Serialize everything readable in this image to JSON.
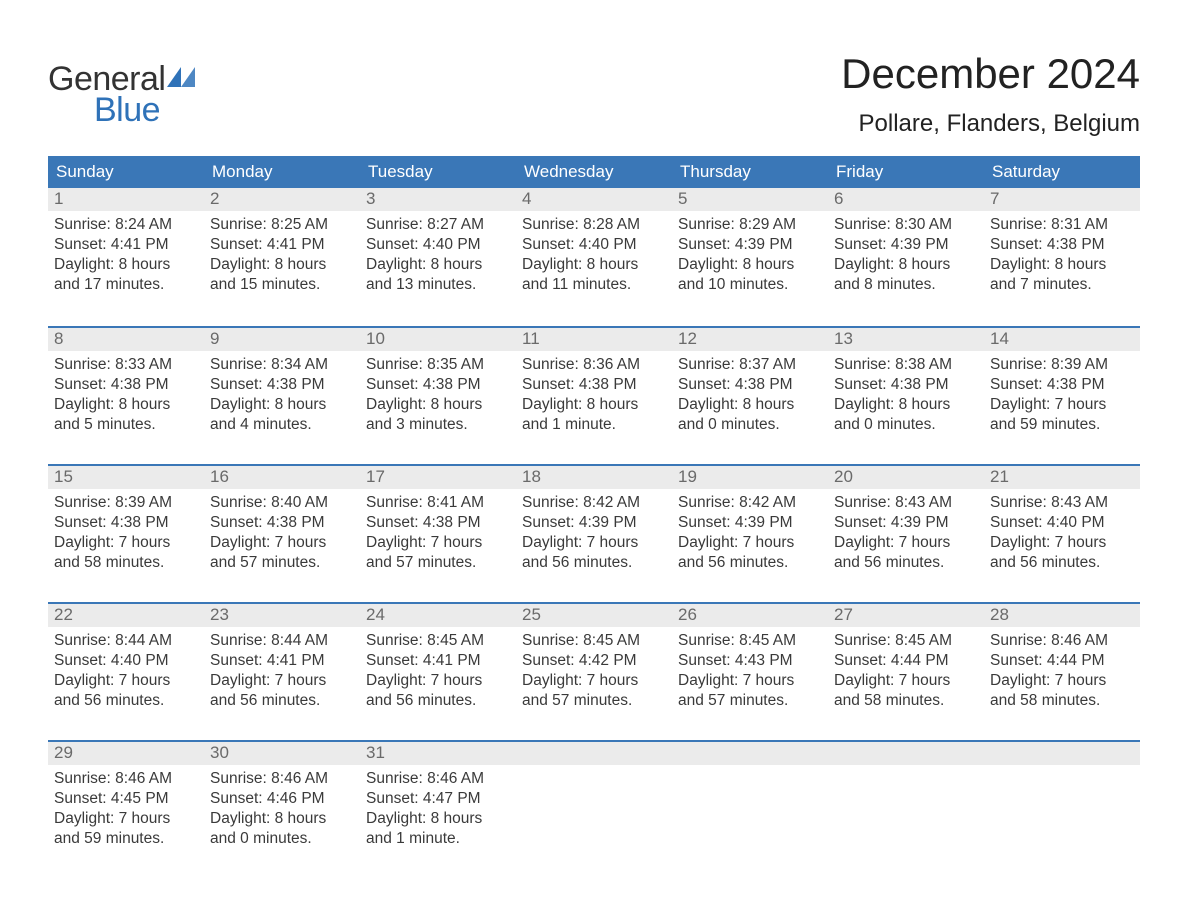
{
  "logo": {
    "text_top": "General",
    "text_bottom": "Blue",
    "accent_color": "#2f72b8"
  },
  "title": "December 2024",
  "location": "Pollare, Flanders, Belgium",
  "colors": {
    "header_bg": "#3a77b7",
    "header_text": "#ffffff",
    "day_number_bg": "#ebebeb",
    "day_number_text": "#6a6a6a",
    "body_text": "#3a3a3a",
    "row_border": "#3a77b7",
    "page_bg": "#ffffff"
  },
  "weekdays": [
    "Sunday",
    "Monday",
    "Tuesday",
    "Wednesday",
    "Thursday",
    "Friday",
    "Saturday"
  ],
  "weeks": [
    [
      {
        "day": "1",
        "sunrise": "Sunrise: 8:24 AM",
        "sunset": "Sunset: 4:41 PM",
        "dl1": "Daylight: 8 hours",
        "dl2": "and 17 minutes."
      },
      {
        "day": "2",
        "sunrise": "Sunrise: 8:25 AM",
        "sunset": "Sunset: 4:41 PM",
        "dl1": "Daylight: 8 hours",
        "dl2": "and 15 minutes."
      },
      {
        "day": "3",
        "sunrise": "Sunrise: 8:27 AM",
        "sunset": "Sunset: 4:40 PM",
        "dl1": "Daylight: 8 hours",
        "dl2": "and 13 minutes."
      },
      {
        "day": "4",
        "sunrise": "Sunrise: 8:28 AM",
        "sunset": "Sunset: 4:40 PM",
        "dl1": "Daylight: 8 hours",
        "dl2": "and 11 minutes."
      },
      {
        "day": "5",
        "sunrise": "Sunrise: 8:29 AM",
        "sunset": "Sunset: 4:39 PM",
        "dl1": "Daylight: 8 hours",
        "dl2": "and 10 minutes."
      },
      {
        "day": "6",
        "sunrise": "Sunrise: 8:30 AM",
        "sunset": "Sunset: 4:39 PM",
        "dl1": "Daylight: 8 hours",
        "dl2": "and 8 minutes."
      },
      {
        "day": "7",
        "sunrise": "Sunrise: 8:31 AM",
        "sunset": "Sunset: 4:38 PM",
        "dl1": "Daylight: 8 hours",
        "dl2": "and 7 minutes."
      }
    ],
    [
      {
        "day": "8",
        "sunrise": "Sunrise: 8:33 AM",
        "sunset": "Sunset: 4:38 PM",
        "dl1": "Daylight: 8 hours",
        "dl2": "and 5 minutes."
      },
      {
        "day": "9",
        "sunrise": "Sunrise: 8:34 AM",
        "sunset": "Sunset: 4:38 PM",
        "dl1": "Daylight: 8 hours",
        "dl2": "and 4 minutes."
      },
      {
        "day": "10",
        "sunrise": "Sunrise: 8:35 AM",
        "sunset": "Sunset: 4:38 PM",
        "dl1": "Daylight: 8 hours",
        "dl2": "and 3 minutes."
      },
      {
        "day": "11",
        "sunrise": "Sunrise: 8:36 AM",
        "sunset": "Sunset: 4:38 PM",
        "dl1": "Daylight: 8 hours",
        "dl2": "and 1 minute."
      },
      {
        "day": "12",
        "sunrise": "Sunrise: 8:37 AM",
        "sunset": "Sunset: 4:38 PM",
        "dl1": "Daylight: 8 hours",
        "dl2": "and 0 minutes."
      },
      {
        "day": "13",
        "sunrise": "Sunrise: 8:38 AM",
        "sunset": "Sunset: 4:38 PM",
        "dl1": "Daylight: 8 hours",
        "dl2": "and 0 minutes."
      },
      {
        "day": "14",
        "sunrise": "Sunrise: 8:39 AM",
        "sunset": "Sunset: 4:38 PM",
        "dl1": "Daylight: 7 hours",
        "dl2": "and 59 minutes."
      }
    ],
    [
      {
        "day": "15",
        "sunrise": "Sunrise: 8:39 AM",
        "sunset": "Sunset: 4:38 PM",
        "dl1": "Daylight: 7 hours",
        "dl2": "and 58 minutes."
      },
      {
        "day": "16",
        "sunrise": "Sunrise: 8:40 AM",
        "sunset": "Sunset: 4:38 PM",
        "dl1": "Daylight: 7 hours",
        "dl2": "and 57 minutes."
      },
      {
        "day": "17",
        "sunrise": "Sunrise: 8:41 AM",
        "sunset": "Sunset: 4:38 PM",
        "dl1": "Daylight: 7 hours",
        "dl2": "and 57 minutes."
      },
      {
        "day": "18",
        "sunrise": "Sunrise: 8:42 AM",
        "sunset": "Sunset: 4:39 PM",
        "dl1": "Daylight: 7 hours",
        "dl2": "and 56 minutes."
      },
      {
        "day": "19",
        "sunrise": "Sunrise: 8:42 AM",
        "sunset": "Sunset: 4:39 PM",
        "dl1": "Daylight: 7 hours",
        "dl2": "and 56 minutes."
      },
      {
        "day": "20",
        "sunrise": "Sunrise: 8:43 AM",
        "sunset": "Sunset: 4:39 PM",
        "dl1": "Daylight: 7 hours",
        "dl2": "and 56 minutes."
      },
      {
        "day": "21",
        "sunrise": "Sunrise: 8:43 AM",
        "sunset": "Sunset: 4:40 PM",
        "dl1": "Daylight: 7 hours",
        "dl2": "and 56 minutes."
      }
    ],
    [
      {
        "day": "22",
        "sunrise": "Sunrise: 8:44 AM",
        "sunset": "Sunset: 4:40 PM",
        "dl1": "Daylight: 7 hours",
        "dl2": "and 56 minutes."
      },
      {
        "day": "23",
        "sunrise": "Sunrise: 8:44 AM",
        "sunset": "Sunset: 4:41 PM",
        "dl1": "Daylight: 7 hours",
        "dl2": "and 56 minutes."
      },
      {
        "day": "24",
        "sunrise": "Sunrise: 8:45 AM",
        "sunset": "Sunset: 4:41 PM",
        "dl1": "Daylight: 7 hours",
        "dl2": "and 56 minutes."
      },
      {
        "day": "25",
        "sunrise": "Sunrise: 8:45 AM",
        "sunset": "Sunset: 4:42 PM",
        "dl1": "Daylight: 7 hours",
        "dl2": "and 57 minutes."
      },
      {
        "day": "26",
        "sunrise": "Sunrise: 8:45 AM",
        "sunset": "Sunset: 4:43 PM",
        "dl1": "Daylight: 7 hours",
        "dl2": "and 57 minutes."
      },
      {
        "day": "27",
        "sunrise": "Sunrise: 8:45 AM",
        "sunset": "Sunset: 4:44 PM",
        "dl1": "Daylight: 7 hours",
        "dl2": "and 58 minutes."
      },
      {
        "day": "28",
        "sunrise": "Sunrise: 8:46 AM",
        "sunset": "Sunset: 4:44 PM",
        "dl1": "Daylight: 7 hours",
        "dl2": "and 58 minutes."
      }
    ],
    [
      {
        "day": "29",
        "sunrise": "Sunrise: 8:46 AM",
        "sunset": "Sunset: 4:45 PM",
        "dl1": "Daylight: 7 hours",
        "dl2": "and 59 minutes."
      },
      {
        "day": "30",
        "sunrise": "Sunrise: 8:46 AM",
        "sunset": "Sunset: 4:46 PM",
        "dl1": "Daylight: 8 hours",
        "dl2": "and 0 minutes."
      },
      {
        "day": "31",
        "sunrise": "Sunrise: 8:46 AM",
        "sunset": "Sunset: 4:47 PM",
        "dl1": "Daylight: 8 hours",
        "dl2": "and 1 minute."
      },
      {
        "empty": true
      },
      {
        "empty": true
      },
      {
        "empty": true
      },
      {
        "empty": true
      }
    ]
  ]
}
